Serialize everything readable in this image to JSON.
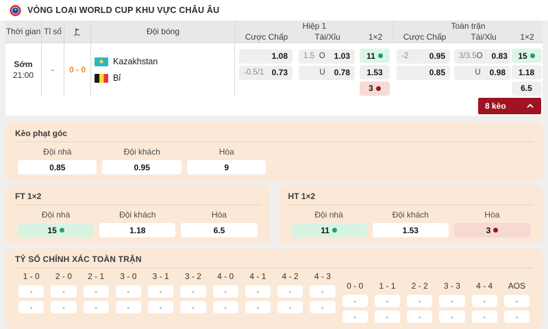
{
  "header": {
    "title": "VÒNG LOẠI WORLD CUP KHU VỰC CHÂU ÂU"
  },
  "table": {
    "headers": {
      "time": "Thời gian",
      "score": "Tỉ số",
      "corner_icon": "corner-flag-icon",
      "team": "Đội bóng",
      "groups": [
        {
          "label": "Hiệp 1",
          "cols": [
            "Cược Chấp",
            "Tài/Xỉu",
            "1×2"
          ]
        },
        {
          "label": "Toàn trận",
          "cols": [
            "Cược Chấp",
            "Tài/Xỉu",
            "1×2"
          ]
        }
      ]
    },
    "match": {
      "time_status": "Sớm",
      "time": "21:00",
      "score": "-",
      "corner_score": "0 - 0",
      "home": "Kazakhstan",
      "away": "Bỉ"
    },
    "odds": {
      "h1": {
        "handicap": [
          {
            "line": "",
            "odds": "1.08"
          },
          {
            "line": "-0.5/1",
            "odds": "0.73"
          }
        ],
        "ou": [
          {
            "line": "1.5",
            "side": "O",
            "odds": "1.03"
          },
          {
            "line": "",
            "side": "U",
            "odds": "0.78"
          }
        ],
        "x12": [
          {
            "text": "11",
            "dot": "green",
            "bg": "green"
          },
          {
            "text": "1.53",
            "bg": "gray"
          },
          {
            "text": "3",
            "dot": "red",
            "bg": "red"
          }
        ]
      },
      "ft": {
        "handicap": [
          {
            "line": "-2",
            "odds": "0.95"
          },
          {
            "line": "",
            "odds": "0.85"
          }
        ],
        "ou": [
          {
            "line": "3/3.5",
            "side": "O",
            "odds": "0.83"
          },
          {
            "line": "",
            "side": "U",
            "odds": "0.98"
          }
        ],
        "x12": [
          {
            "text": "15",
            "dot": "green",
            "bg": "green"
          },
          {
            "text": "1.18",
            "bg": "gray"
          },
          {
            "text": "6.5",
            "bg": "gray"
          }
        ]
      }
    },
    "more_button_label": "8 kèo"
  },
  "sections": {
    "corner": {
      "title": "Kèo phạt góc",
      "cols": [
        "Đội nhà",
        "Đội khách",
        "Hòa"
      ],
      "values": [
        {
          "text": "0.85"
        },
        {
          "text": "0.95"
        },
        {
          "text": "9"
        }
      ]
    },
    "ft12": {
      "title": "FT 1×2",
      "cols": [
        "Đội nhà",
        "Đội khách",
        "Hòa"
      ],
      "values": [
        {
          "text": "15",
          "dot": "green",
          "bg": "green"
        },
        {
          "text": "1.18"
        },
        {
          "text": "6.5"
        }
      ]
    },
    "ht12": {
      "title": "HT 1×2",
      "cols": [
        "Đội nhà",
        "Đội khách",
        "Hòa"
      ],
      "values": [
        {
          "text": "11",
          "dot": "green",
          "bg": "green"
        },
        {
          "text": "1.53"
        },
        {
          "text": "3",
          "dot": "red",
          "bg": "red"
        }
      ]
    },
    "correct_score": {
      "title": "TỶ SỐ CHÍNH XÁC TOÀN TRẬN",
      "left_cols": [
        "1 - 0",
        "2 - 0",
        "2 - 1",
        "3 - 0",
        "3 - 1",
        "3 - 2",
        "4 - 0",
        "4 - 1",
        "4 - 2",
        "4 - 3"
      ],
      "right_cols": [
        "0 - 0",
        "1 - 1",
        "2 - 2",
        "3 - 3",
        "4 - 4",
        "AOS"
      ],
      "placeholder": "-"
    }
  },
  "colors": {
    "accent_red_button": "#9f1322",
    "favorite_green_bg": "#ddf5e8",
    "green_dot": "#23a169",
    "underdog_pink_bg": "#f8dad4",
    "red_dot": "#8e1c1c",
    "card_peach_bg": "#fbe8d7",
    "corner_score_orange": "#f08a1e",
    "score_dash_red": "#e2574b"
  }
}
